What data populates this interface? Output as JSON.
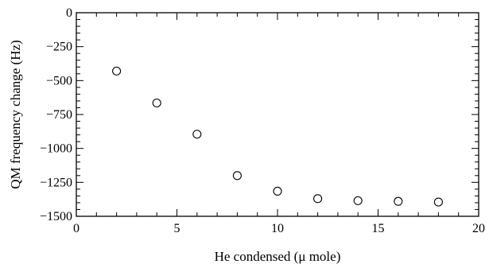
{
  "chart_data": {
    "type": "scatter",
    "title": "",
    "xlabel": "He condensed (μ mole)",
    "ylabel": "QM frequency change (Hz)",
    "xlim": [
      0,
      20
    ],
    "ylim": [
      -1500,
      0
    ],
    "x_ticks": [
      0,
      5,
      10,
      15,
      20
    ],
    "x_tick_labels": [
      "0",
      "5",
      "10",
      "15",
      "20"
    ],
    "y_ticks": [
      0,
      -250,
      -500,
      -750,
      -1000,
      -1250,
      -1500
    ],
    "y_tick_labels": [
      "0",
      "−250",
      "−500",
      "−750",
      "−1000",
      "−1250",
      "−1500"
    ],
    "x_minor_step": 1,
    "y_minor_step": 50,
    "grid": false,
    "legend": "none",
    "marker": "open-circle",
    "points": [
      {
        "x": 2,
        "y": -430
      },
      {
        "x": 4,
        "y": -665
      },
      {
        "x": 6,
        "y": -895
      },
      {
        "x": 8,
        "y": -1200
      },
      {
        "x": 10,
        "y": -1315
      },
      {
        "x": 12,
        "y": -1370
      },
      {
        "x": 14,
        "y": -1385
      },
      {
        "x": 16,
        "y": -1390
      },
      {
        "x": 18,
        "y": -1395
      }
    ]
  }
}
